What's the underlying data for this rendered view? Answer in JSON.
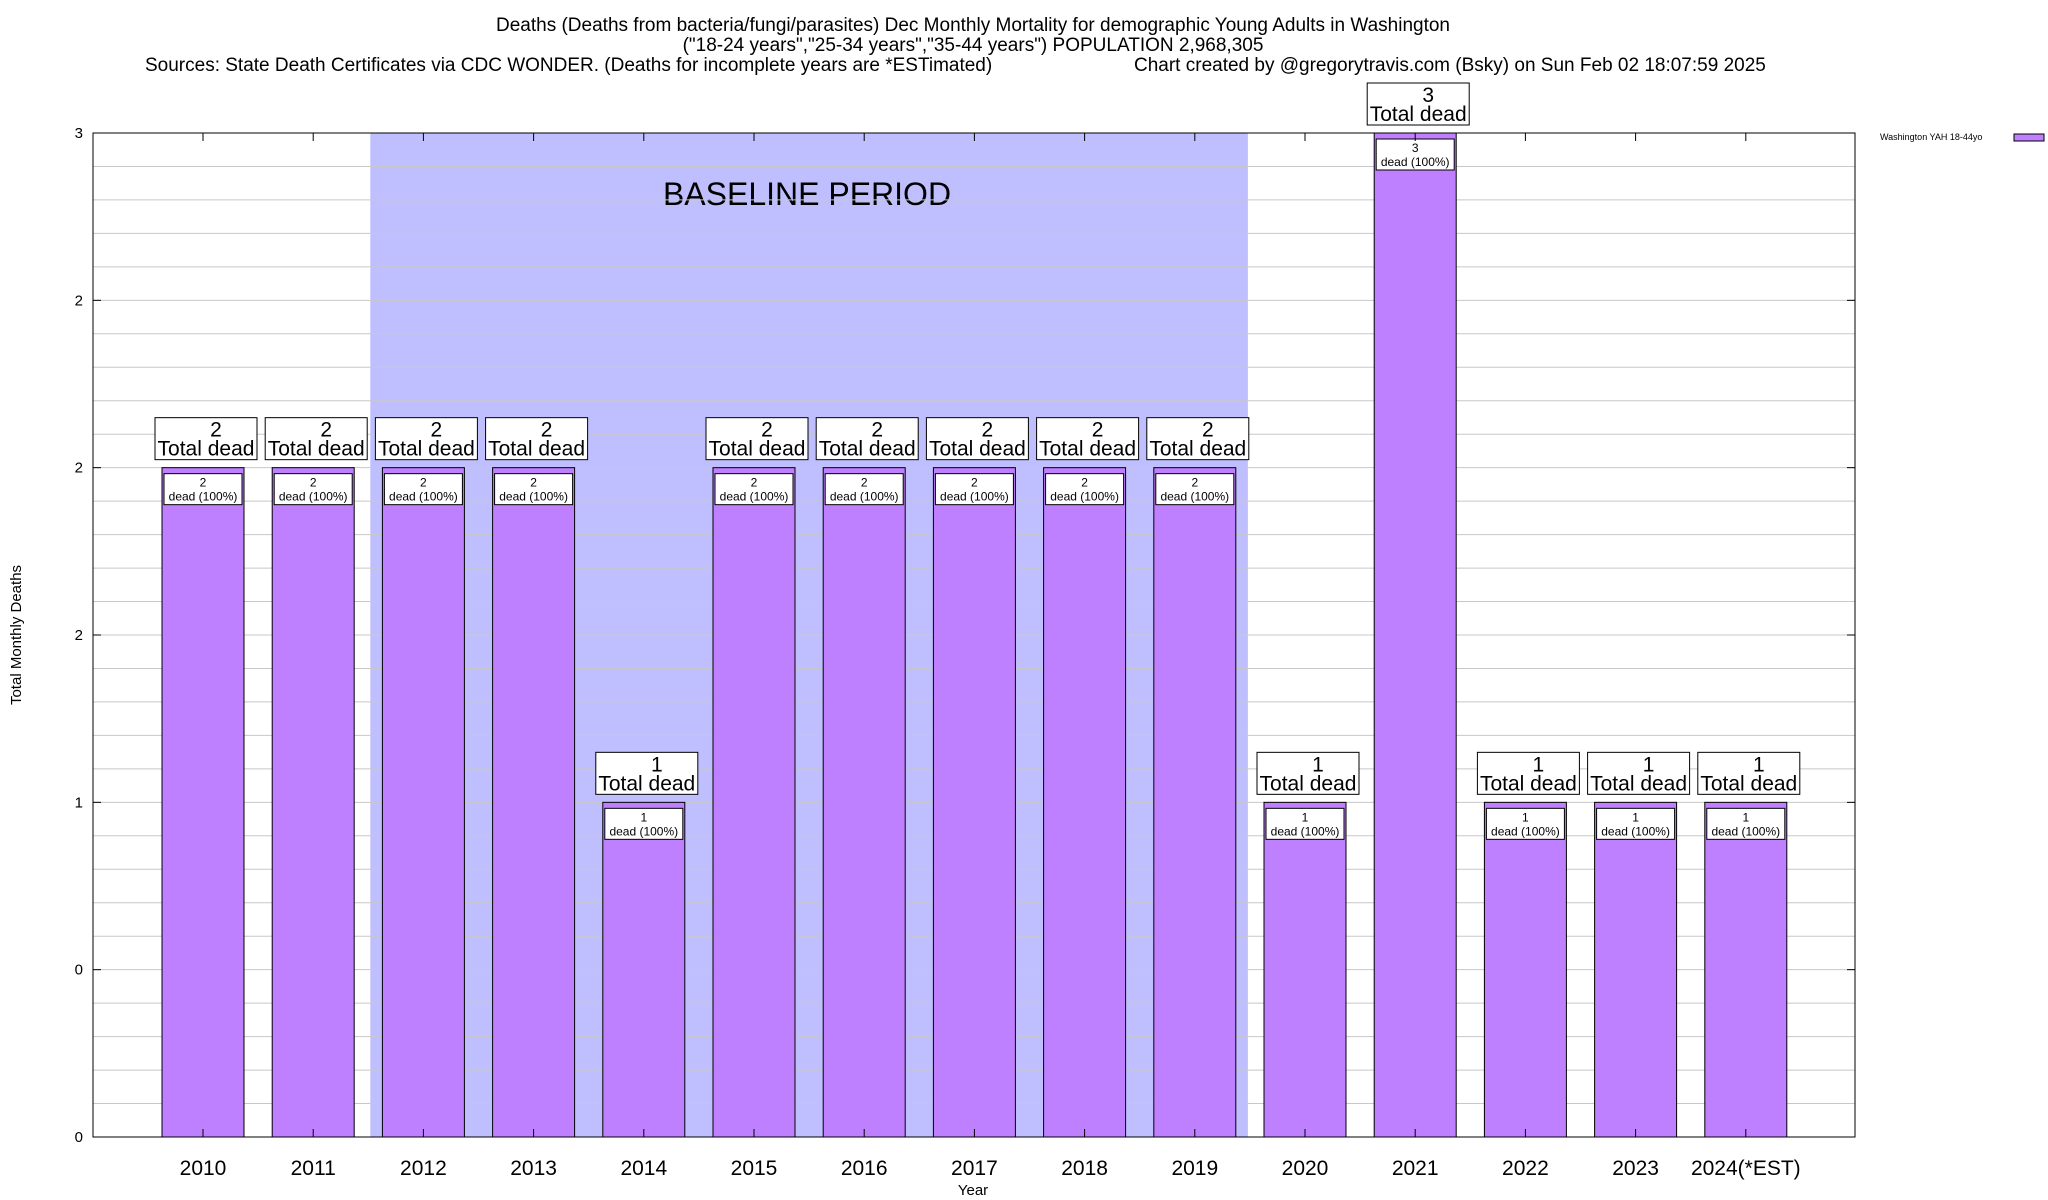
{
  "chart_data": {
    "type": "bar",
    "title": "Deaths (Deaths from bacteria/fungi/parasites) Dec Monthly Mortality for demographic Young Adults in Washington",
    "subtitle": "(\"18-24 years\",\"25-34 years\",\"35-44 years\") POPULATION 2,968,305",
    "sources": "Sources: State Death Certificates via CDC WONDER. (Deaths for incomplete years are *ESTimated)",
    "credit": "Chart created by @gregorytravis.com (Bsky) on Sun Feb 02 18:07:59 2025",
    "xlabel": "Year",
    "ylabel": "Total Monthly Deaths",
    "ylim": [
      0,
      3
    ],
    "y_tick_values": [
      0,
      0.5,
      1,
      1.5,
      2,
      2.5,
      3
    ],
    "y_tick_labels": [
      "0",
      "0",
      "1",
      "2",
      "2",
      "2",
      "3"
    ],
    "grid": true,
    "categories": [
      "2010",
      "2011",
      "2012",
      "2013",
      "2014",
      "2015",
      "2016",
      "2017",
      "2018",
      "2019",
      "2020",
      "2021",
      "2022",
      "2023",
      "2024(*EST)"
    ],
    "series": [
      {
        "name": "Washington YAH 18-44yo",
        "color": "#bf80ff",
        "values": [
          2,
          2,
          2,
          2,
          1,
          2,
          2,
          2,
          2,
          2,
          1,
          3,
          1,
          1,
          1
        ]
      }
    ],
    "total_label_word": "Total dead",
    "inner_label_suffix": "dead (100%)",
    "baseline": {
      "label": "BASELINE PERIOD",
      "start": "2012",
      "end": "2019",
      "color": "#bfbfff"
    },
    "legend_position": "top-right"
  }
}
